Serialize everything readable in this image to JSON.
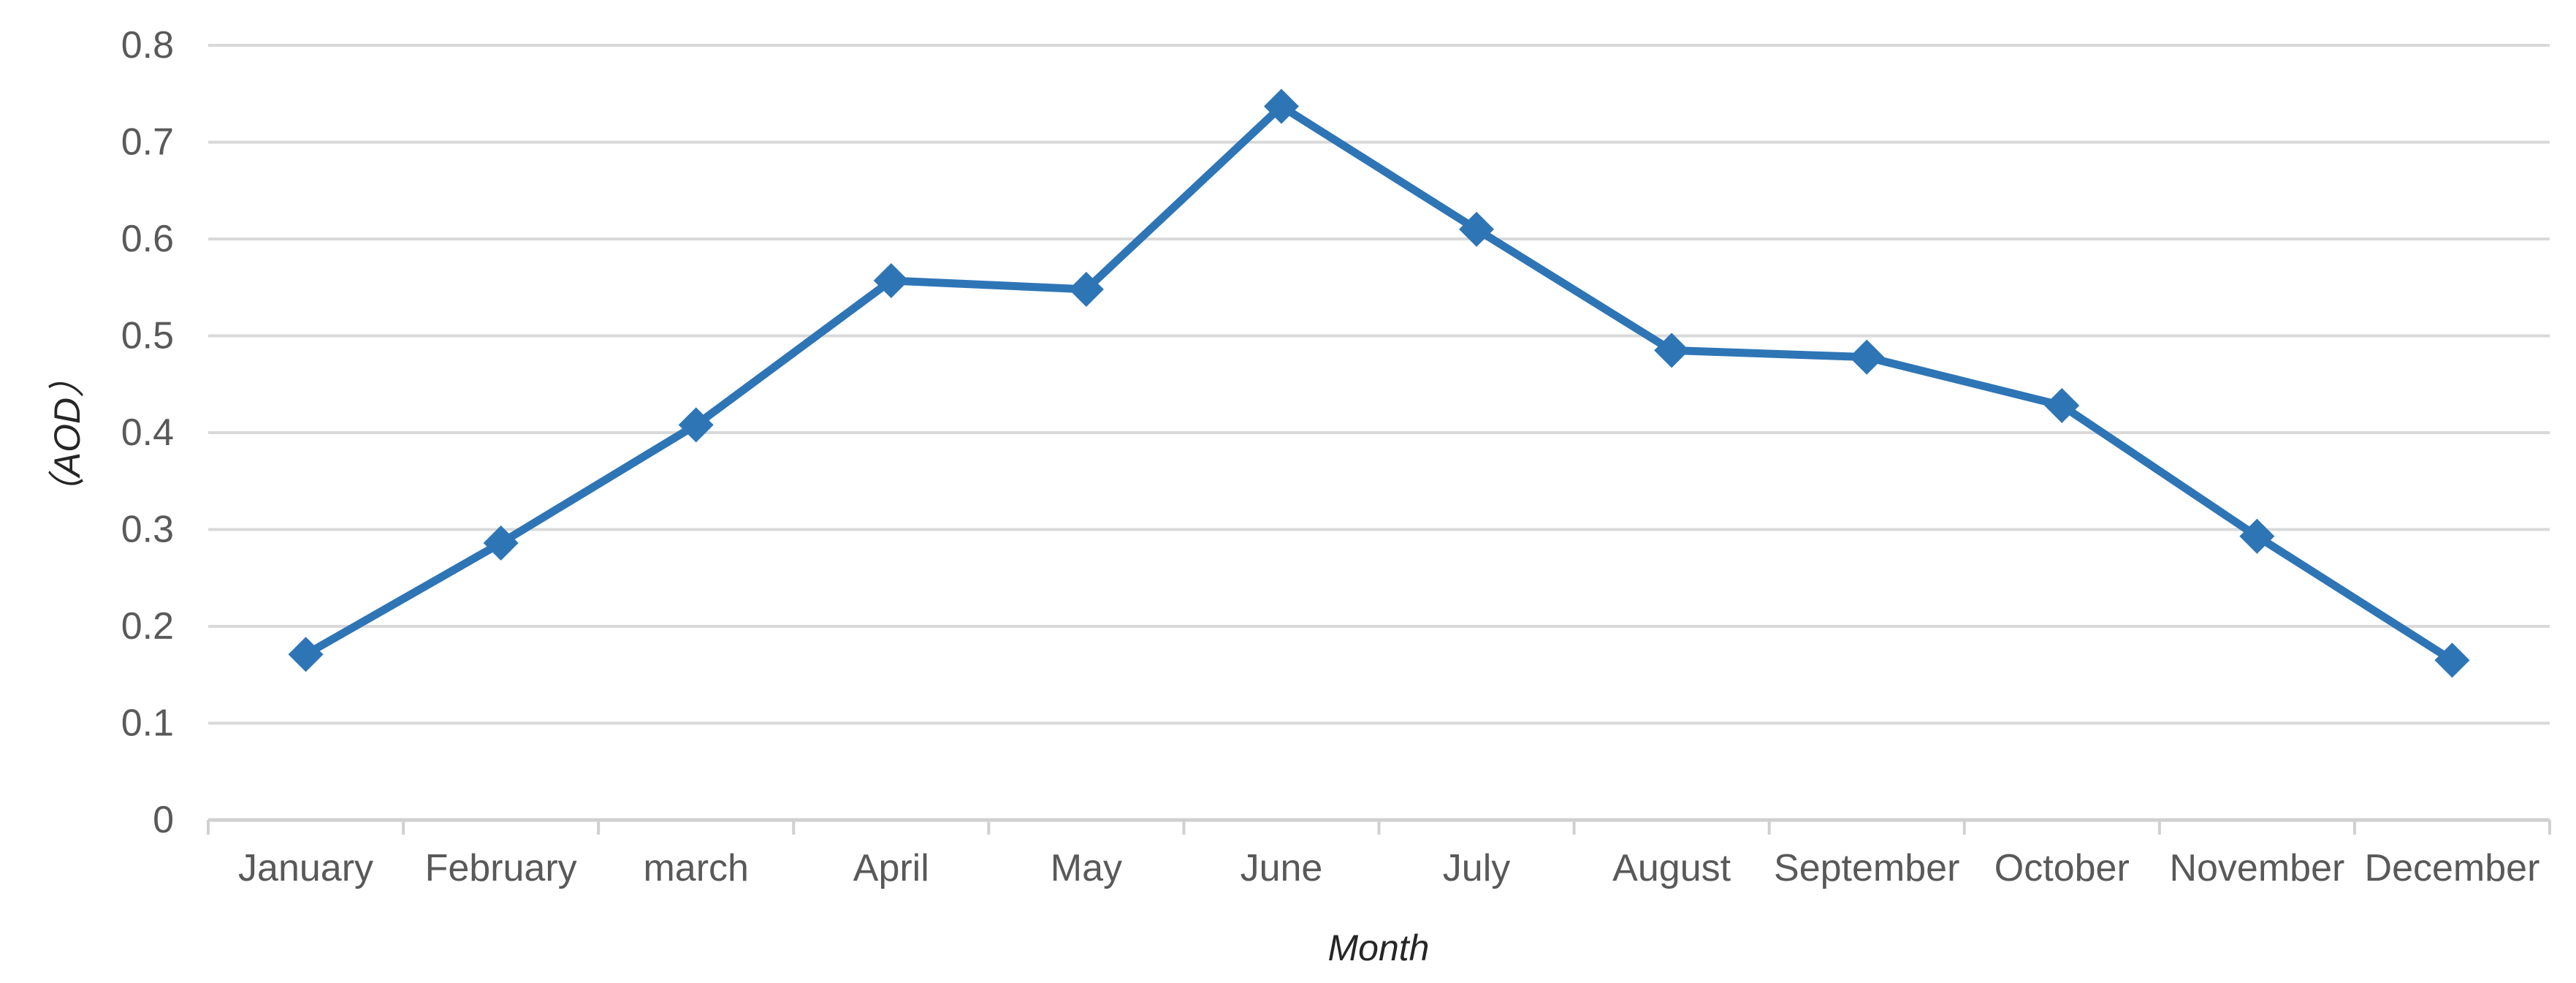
{
  "chart_data": {
    "type": "line",
    "title": "",
    "categories": [
      "January",
      "February",
      "march",
      "April",
      "May",
      "June",
      "July",
      "August",
      "September",
      "October",
      "November",
      "December"
    ],
    "series": [
      {
        "name": "AOD",
        "values": [
          0.171,
          0.286,
          0.408,
          0.557,
          0.548,
          0.737,
          0.61,
          0.485,
          0.478,
          0.428,
          0.293,
          0.165
        ]
      }
    ],
    "xlabel": "Month",
    "ylabel": "（AOD）",
    "ylim": [
      0,
      0.8
    ],
    "ytick_step": 0.1,
    "ytick_labels": [
      "0",
      "0.1",
      "0.2",
      "0.3",
      "0.4",
      "0.5",
      "0.6",
      "0.7",
      "0.8"
    ],
    "grid": "horizontal-only",
    "legend_position": "none",
    "marker": "diamond",
    "colors": {
      "line": "#2E75B6",
      "gridline": "#D9D9D9",
      "axis_line": "#D0D0D0",
      "tick_text": "#595959",
      "axis_title_text": "#262626",
      "background": "#FFFFFF"
    }
  }
}
